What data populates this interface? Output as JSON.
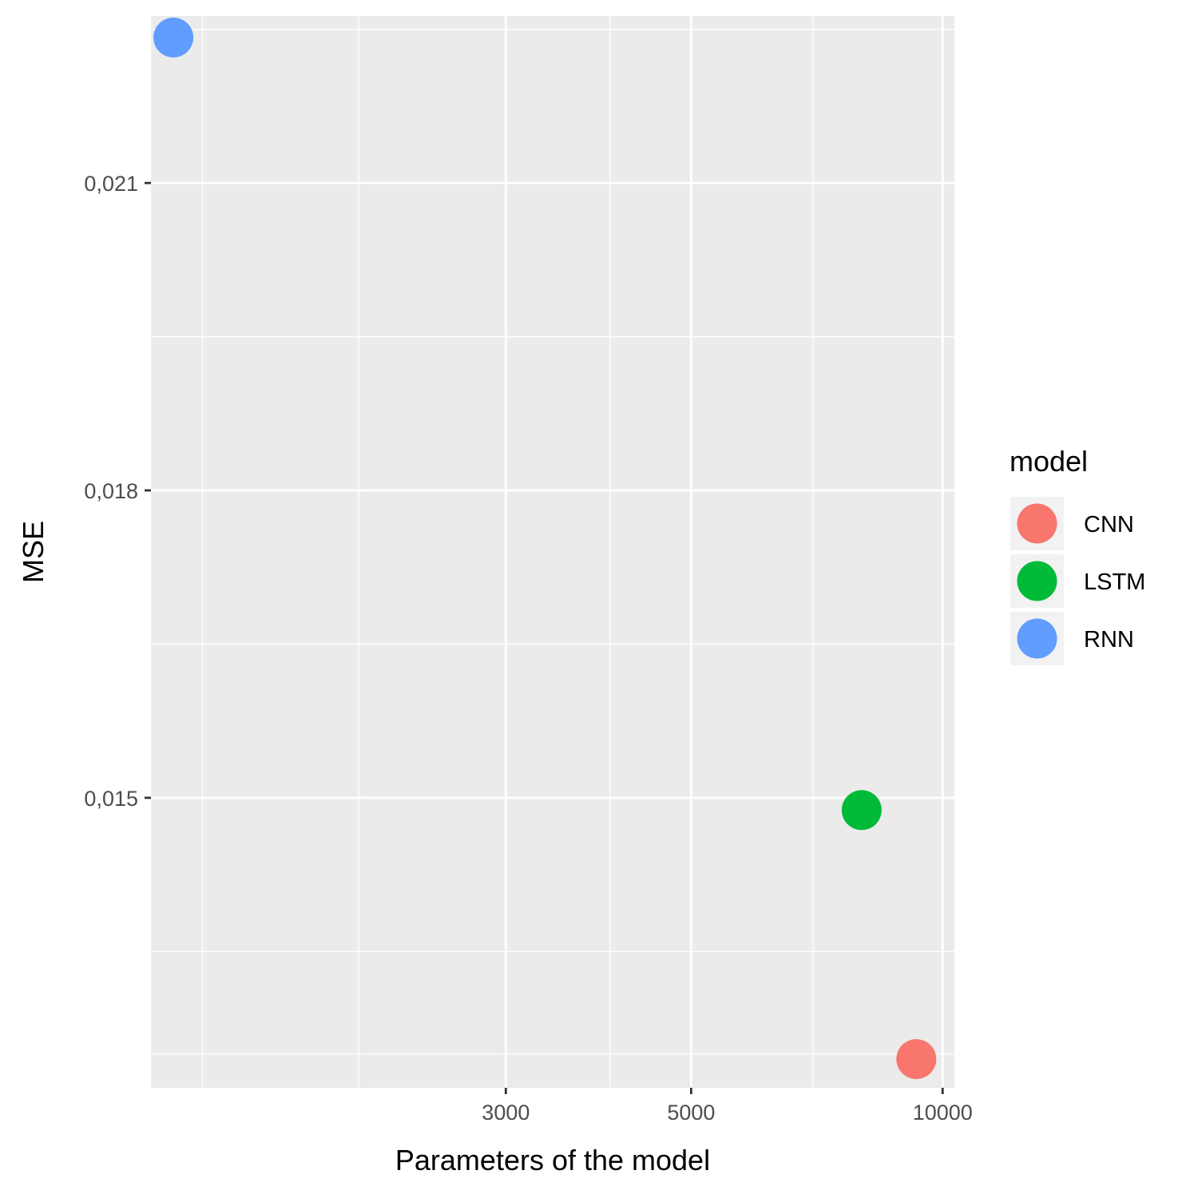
{
  "chart_data": {
    "type": "scatter",
    "title": "",
    "xlabel": "Parameters of the model",
    "ylabel": "MSE",
    "x_scale": "log10",
    "xlim": [
      1128,
      10330
    ],
    "ylim": [
      0.01217,
      0.02263
    ],
    "x_ticks": [
      {
        "value": 3000,
        "label": "3000"
      },
      {
        "value": 5000,
        "label": "5000"
      },
      {
        "value": 10000,
        "label": "10000"
      }
    ],
    "x_minor_ticks": [
      1300,
      2000,
      4000,
      7000
    ],
    "y_ticks": [
      {
        "value": 0.015,
        "label": "0,015"
      },
      {
        "value": 0.018,
        "label": "0,018"
      },
      {
        "value": 0.021,
        "label": "0,021"
      }
    ],
    "y_minor_ticks": [
      0.0125,
      0.0135,
      0.0165,
      0.0195,
      0.0225
    ],
    "grid": true,
    "legend": {
      "title": "model",
      "position": "right",
      "entries": [
        {
          "label": "CNN",
          "color": "#F8766D"
        },
        {
          "label": "LSTM",
          "color": "#00BA38"
        },
        {
          "label": "RNN",
          "color": "#619CFF"
        }
      ]
    },
    "points": [
      {
        "model": "RNN",
        "x": 1200,
        "y": 0.02242,
        "color": "#619CFF"
      },
      {
        "model": "LSTM",
        "x": 8000,
        "y": 0.01488,
        "color": "#00BA38"
      },
      {
        "model": "CNN",
        "x": 9300,
        "y": 0.01245,
        "color": "#F8766D"
      }
    ]
  }
}
